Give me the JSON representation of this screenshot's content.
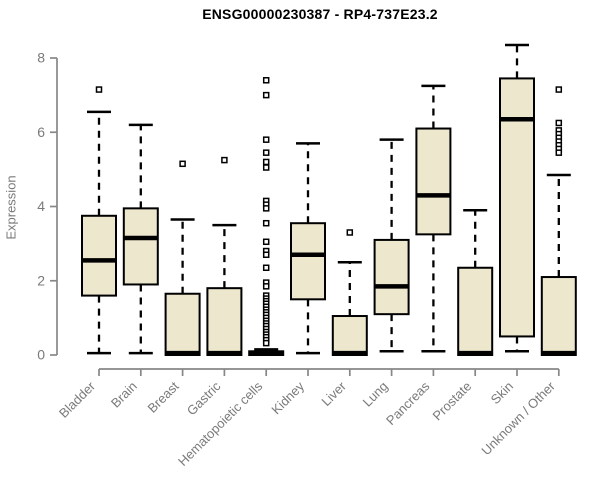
{
  "title": "ENSG00000230387 - RP4-737E23.2",
  "chart_data": {
    "type": "boxplot",
    "title": "ENSG00000230387 - RP4-737E23.2",
    "xlabel": "",
    "ylabel": "Expression",
    "ylim": [
      0,
      8.5
    ],
    "yticks": [
      0,
      2,
      4,
      6,
      8
    ],
    "grid": false,
    "legend": "none",
    "categories": [
      "Bladder",
      "Brain",
      "Breast",
      "Gastric",
      "Hematopoietic cells",
      "Kidney",
      "Liver",
      "Lung",
      "Pancreas",
      "Prostate",
      "Skin",
      "Unknown / Other"
    ],
    "boxes": [
      {
        "category": "Bladder",
        "low": 0.05,
        "q1": 1.6,
        "median": 2.55,
        "q3": 3.75,
        "high": 6.55,
        "outliers": [
          7.15
        ]
      },
      {
        "category": "Brain",
        "low": 0.05,
        "q1": 1.9,
        "median": 3.15,
        "q3": 3.95,
        "high": 6.2,
        "outliers": []
      },
      {
        "category": "Breast",
        "low": 0,
        "q1": 0,
        "median": 0.05,
        "q3": 1.65,
        "high": 3.65,
        "outliers": [
          5.15
        ]
      },
      {
        "category": "Gastric",
        "low": 0,
        "q1": 0,
        "median": 0.05,
        "q3": 1.8,
        "high": 3.5,
        "outliers": [
          5.25
        ]
      },
      {
        "category": "Hematopoietic cells",
        "low": 0,
        "q1": 0,
        "median": 0.05,
        "q3": 0.1,
        "high": 0.15,
        "outliers": [
          7.4,
          7.0,
          5.8,
          5.45,
          5.2,
          5.05,
          4.15,
          4.05,
          3.95,
          3.55,
          3.05,
          2.8,
          2.7,
          2.35,
          1.95,
          1.85,
          1.6,
          1.52,
          1.45,
          1.38,
          1.3,
          1.22,
          1.15,
          1.08,
          1.0,
          0.92,
          0.85,
          0.78,
          0.7,
          0.62,
          0.55,
          0.48,
          0.4,
          0.32
        ]
      },
      {
        "category": "Kidney",
        "low": 0.05,
        "q1": 1.5,
        "median": 2.7,
        "q3": 3.55,
        "high": 5.7,
        "outliers": []
      },
      {
        "category": "Liver",
        "low": 0,
        "q1": 0,
        "median": 0.05,
        "q3": 1.05,
        "high": 2.5,
        "outliers": [
          3.3
        ]
      },
      {
        "category": "Lung",
        "low": 0.1,
        "q1": 1.1,
        "median": 1.85,
        "q3": 3.1,
        "high": 5.8,
        "outliers": []
      },
      {
        "category": "Pancreas",
        "low": 0.1,
        "q1": 3.25,
        "median": 4.3,
        "q3": 6.1,
        "high": 7.25,
        "outliers": []
      },
      {
        "category": "Prostate",
        "low": 0,
        "q1": 0,
        "median": 0.05,
        "q3": 2.35,
        "high": 3.9,
        "outliers": []
      },
      {
        "category": "Skin",
        "low": 0.1,
        "q1": 0.5,
        "median": 6.35,
        "q3": 7.45,
        "high": 8.35,
        "outliers": []
      },
      {
        "category": "Unknown / Other",
        "low": 0,
        "q1": 0,
        "median": 0.05,
        "q3": 2.1,
        "high": 4.85,
        "outliers": [
          7.15,
          6.25,
          6.05,
          5.95,
          5.85,
          5.75,
          5.65,
          5.55,
          5.45
        ]
      }
    ],
    "colors": {
      "box_fill": "#ece7cd",
      "box_stroke": "#000000",
      "median": "#000000",
      "whisker": "#000000",
      "outlier_stroke": "#000000",
      "outlier_fill": "#ffffff",
      "axis": "#878787",
      "tick_label": "#7a7a7a",
      "title": "#000000",
      "background": "#ffffff"
    }
  }
}
